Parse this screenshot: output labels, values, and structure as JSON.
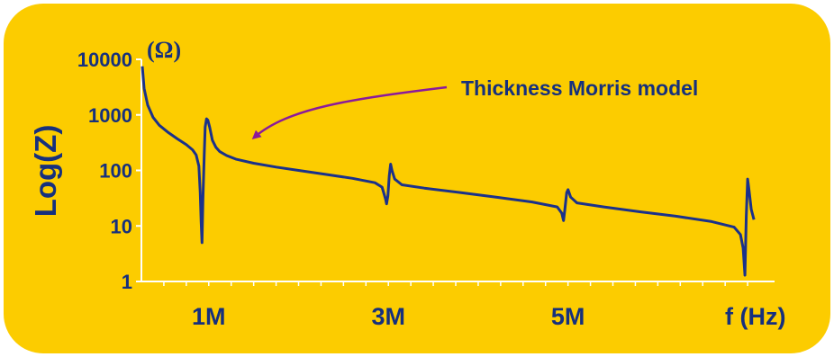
{
  "chart_data": {
    "type": "line",
    "title": "",
    "ylabel": "Log(Z)",
    "yunit": "(Ω)",
    "xlabel": "f (Hz)",
    "yscale": "log",
    "ylim": [
      1,
      10000
    ],
    "xlim": [
      0.25,
      7.3
    ],
    "yticks": [
      "1",
      "10",
      "100",
      "1000",
      "10000"
    ],
    "xticks": [
      {
        "label": "1M",
        "value": 1
      },
      {
        "label": "3M",
        "value": 3
      },
      {
        "label": "5M",
        "value": 5
      }
    ],
    "annotation": {
      "text": "Thickness Morris model",
      "points_to": {
        "x": 1.2,
        "y": 180
      }
    },
    "colors": {
      "line": "#1b318a",
      "background": "#fccc00",
      "arrow": "#8b1a9b",
      "text": "#16307d"
    },
    "series": [
      {
        "name": "",
        "points": [
          [
            0.26,
            7500
          ],
          [
            0.28,
            3000
          ],
          [
            0.32,
            1500
          ],
          [
            0.38,
            900
          ],
          [
            0.45,
            650
          ],
          [
            0.55,
            480
          ],
          [
            0.65,
            370
          ],
          [
            0.75,
            290
          ],
          [
            0.82,
            235
          ],
          [
            0.86,
            190
          ],
          [
            0.89,
            120
          ],
          [
            0.905,
            40
          ],
          [
            0.915,
            12
          ],
          [
            0.925,
            5
          ],
          [
            0.935,
            30
          ],
          [
            0.95,
            200
          ],
          [
            0.96,
            600
          ],
          [
            0.975,
            850
          ],
          [
            0.99,
            800
          ],
          [
            1.01,
            600
          ],
          [
            1.04,
            350
          ],
          [
            1.08,
            260
          ],
          [
            1.12,
            220
          ],
          [
            1.2,
            185
          ],
          [
            1.3,
            160
          ],
          [
            1.5,
            135
          ],
          [
            1.75,
            115
          ],
          [
            2.0,
            100
          ],
          [
            2.3,
            85
          ],
          [
            2.6,
            72
          ],
          [
            2.85,
            60
          ],
          [
            2.93,
            50
          ],
          [
            2.97,
            30
          ],
          [
            2.98,
            25
          ],
          [
            2.995,
            35
          ],
          [
            3.01,
            80
          ],
          [
            3.025,
            130
          ],
          [
            3.04,
            100
          ],
          [
            3.07,
            70
          ],
          [
            3.15,
            55
          ],
          [
            3.4,
            48
          ],
          [
            3.8,
            40
          ],
          [
            4.2,
            33
          ],
          [
            4.6,
            27
          ],
          [
            4.88,
            22
          ],
          [
            4.93,
            17
          ],
          [
            4.95,
            12.5
          ],
          [
            4.965,
            20
          ],
          [
            4.985,
            40
          ],
          [
            5.0,
            45
          ],
          [
            5.03,
            33
          ],
          [
            5.1,
            26
          ],
          [
            5.4,
            22
          ],
          [
            5.8,
            18
          ],
          [
            6.2,
            15
          ],
          [
            6.6,
            12
          ],
          [
            6.85,
            9.5
          ],
          [
            6.92,
            7
          ],
          [
            6.95,
            4
          ],
          [
            6.97,
            1.3
          ],
          [
            6.985,
            15
          ],
          [
            7.0,
            70
          ],
          [
            7.015,
            45
          ],
          [
            7.04,
            20
          ],
          [
            7.07,
            13
          ]
        ]
      }
    ]
  }
}
